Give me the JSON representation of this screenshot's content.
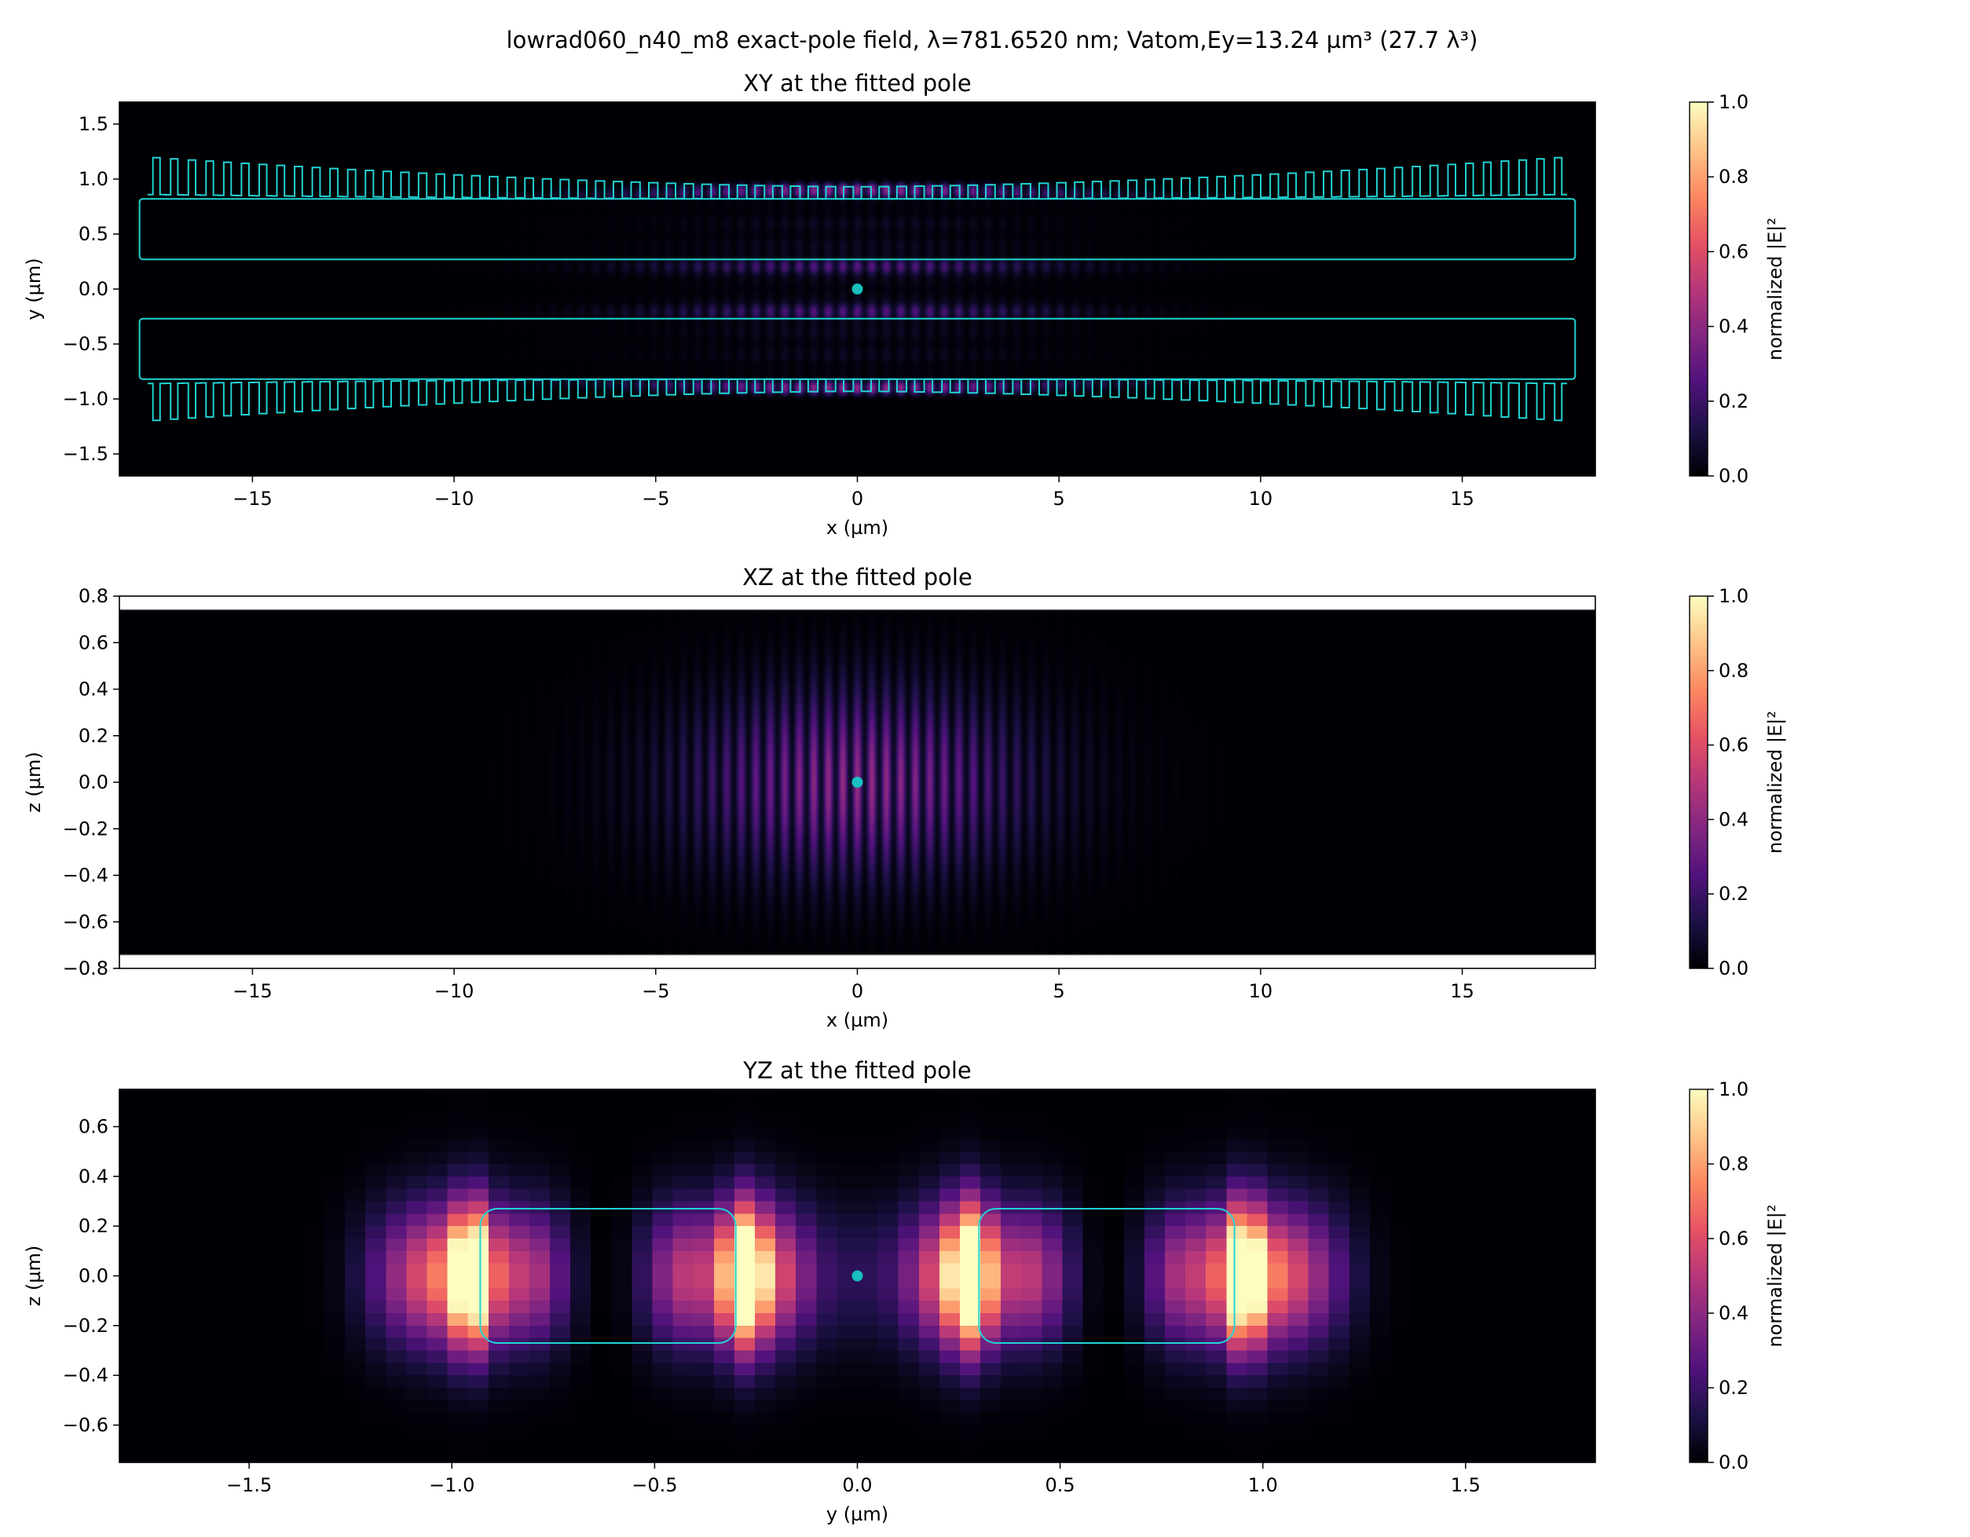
{
  "figure_title": "lowrad060_n40_m8 exact-pole field, λ=781.6520 nm; Vatom,Ey=13.24 µm³ (27.7 λ³)",
  "colors": {
    "background": "#000004",
    "outline": "#22d3d3",
    "marker": "#17bfbf",
    "axis": "#000000",
    "colormap": [
      "#000004",
      "#1d1147",
      "#51127c",
      "#822681",
      "#b73779",
      "#e75263",
      "#fc8961",
      "#fec488",
      "#fcfdbf"
    ]
  },
  "chart_data": [
    {
      "type": "heatmap",
      "title": "XY at the fitted pole",
      "xlabel": "x (µm)",
      "ylabel": "y (µm)",
      "xlim": [
        -18.3,
        18.3
      ],
      "ylim": [
        -1.7,
        1.7
      ],
      "xticks": [
        -15,
        -10,
        -5,
        0,
        5,
        10,
        15
      ],
      "xtick_labels": [
        "−15",
        "−10",
        "−5",
        "0",
        "5",
        "10",
        "15"
      ],
      "yticks": [
        -1.5,
        -1.0,
        -0.5,
        0.0,
        0.5,
        1.0,
        1.5
      ],
      "ytick_labels": [
        "−1.5",
        "−1.0",
        "−0.5",
        "0.0",
        "0.5",
        "1.0",
        "1.5"
      ],
      "colorbar": {
        "label": "normalized |E|²",
        "range": [
          0,
          1
        ],
        "ticks": [
          "0.0",
          "0.2",
          "0.4",
          "0.6",
          "0.8",
          "1.0"
        ]
      },
      "marker": {
        "x": 0,
        "y": 0
      },
      "structure": {
        "waveguides": [
          {
            "x": [
              -17.8,
              17.8
            ],
            "y": [
              0.27,
              0.82
            ]
          },
          {
            "x": [
              -17.8,
              17.8
            ],
            "y": [
              -0.82,
              -0.27
            ]
          }
        ],
        "teeth": {
          "count": 80,
          "inner": 0.82,
          "outer_center": 0.93,
          "outer_edge": 1.2
        }
      }
    },
    {
      "type": "heatmap",
      "title": "XZ at the fitted pole",
      "xlabel": "x (µm)",
      "ylabel": "z (µm)",
      "xlim": [
        -18.3,
        18.3
      ],
      "ylim": [
        -0.8,
        0.8
      ],
      "data_zlim": [
        -0.74,
        0.74
      ],
      "xticks": [
        -15,
        -10,
        -5,
        0,
        5,
        10,
        15
      ],
      "xtick_labels": [
        "−15",
        "−10",
        "−5",
        "0",
        "5",
        "10",
        "15"
      ],
      "yticks": [
        -0.8,
        -0.6,
        -0.4,
        -0.2,
        0.0,
        0.2,
        0.4,
        0.6,
        0.8
      ],
      "ytick_labels": [
        "−0.8",
        "−0.6",
        "−0.4",
        "−0.2",
        "0.0",
        "0.2",
        "0.4",
        "0.6",
        "0.8"
      ],
      "colorbar": {
        "label": "normalized |E|²",
        "range": [
          0,
          1
        ],
        "ticks": [
          "0.0",
          "0.2",
          "0.4",
          "0.6",
          "0.8",
          "1.0"
        ]
      },
      "marker": {
        "x": 0,
        "y": 0
      }
    },
    {
      "type": "heatmap",
      "title": "YZ at the fitted pole",
      "xlabel": "y (µm)",
      "ylabel": "z (µm)",
      "xlim": [
        -1.82,
        1.82
      ],
      "ylim": [
        -0.75,
        0.75
      ],
      "xticks": [
        -1.5,
        -1.0,
        -0.5,
        0.0,
        0.5,
        1.0,
        1.5
      ],
      "xtick_labels": [
        "−1.5",
        "−1.0",
        "−0.5",
        "0.0",
        "0.5",
        "1.0",
        "1.5"
      ],
      "yticks": [
        -0.6,
        -0.4,
        -0.2,
        0.0,
        0.2,
        0.4,
        0.6
      ],
      "ytick_labels": [
        "−0.6",
        "−0.4",
        "−0.2",
        "0.0",
        "0.2",
        "0.4",
        "0.6"
      ],
      "colorbar": {
        "label": "normalized |E|²",
        "range": [
          0,
          1
        ],
        "ticks": [
          "0.0",
          "0.2",
          "0.4",
          "0.6",
          "0.8",
          "1.0"
        ]
      },
      "marker": {
        "x": 0,
        "y": 0
      },
      "structure": {
        "waveguides": [
          {
            "y": [
              -0.93,
              -0.3
            ],
            "z": [
              -0.27,
              0.27
            ]
          },
          {
            "y": [
              0.3,
              0.93
            ],
            "z": [
              -0.27,
              0.27
            ]
          }
        ]
      }
    }
  ]
}
